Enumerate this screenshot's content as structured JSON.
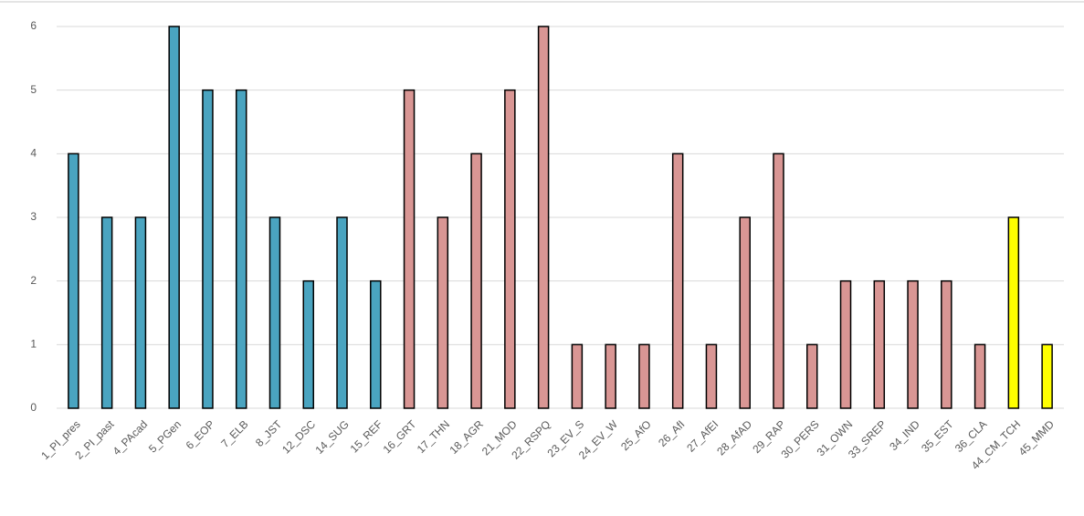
{
  "chart_data": {
    "type": "bar",
    "categories": [
      "1_PI_pres",
      "2_PI_past",
      "4_PAcad",
      "5_PGen",
      "6_EOP",
      "7_ELB",
      "8_JST",
      "12_DSC",
      "14_SUG",
      "15_REF",
      "16_GRT",
      "17_THN",
      "18_AGR",
      "21_MOD",
      "22_RSPQ",
      "23_EV_S",
      "24_EV_W",
      "25_AfO",
      "26_AfI",
      "27_AfEI",
      "28_AfAD",
      "29_RAP",
      "30_PERS",
      "31_OWN",
      "33_SREP",
      "34_IND",
      "35_EST",
      "36_CLA",
      "44_CM_TCH",
      "45_MMD"
    ],
    "values": [
      4,
      3,
      3,
      6,
      5,
      5,
      3,
      2,
      3,
      2,
      5,
      3,
      4,
      5,
      6,
      1,
      1,
      1,
      4,
      1,
      3,
      4,
      1,
      2,
      2,
      2,
      2,
      1,
      3,
      1
    ],
    "colors": [
      "#4aa4c0",
      "#4aa4c0",
      "#4aa4c0",
      "#4aa4c0",
      "#4aa4c0",
      "#4aa4c0",
      "#4aa4c0",
      "#4aa4c0",
      "#4aa4c0",
      "#4aa4c0",
      "#d99694",
      "#d99694",
      "#d99694",
      "#d99694",
      "#d99694",
      "#d99694",
      "#d99694",
      "#d99694",
      "#d99694",
      "#d99694",
      "#d99694",
      "#d99694",
      "#d99694",
      "#d99694",
      "#d99694",
      "#d99694",
      "#d99694",
      "#d99694",
      "#ffff00",
      "#ffff00"
    ],
    "ylim": [
      0,
      6
    ],
    "yticks": [
      0,
      1,
      2,
      3,
      4,
      5,
      6
    ],
    "grid": true
  }
}
